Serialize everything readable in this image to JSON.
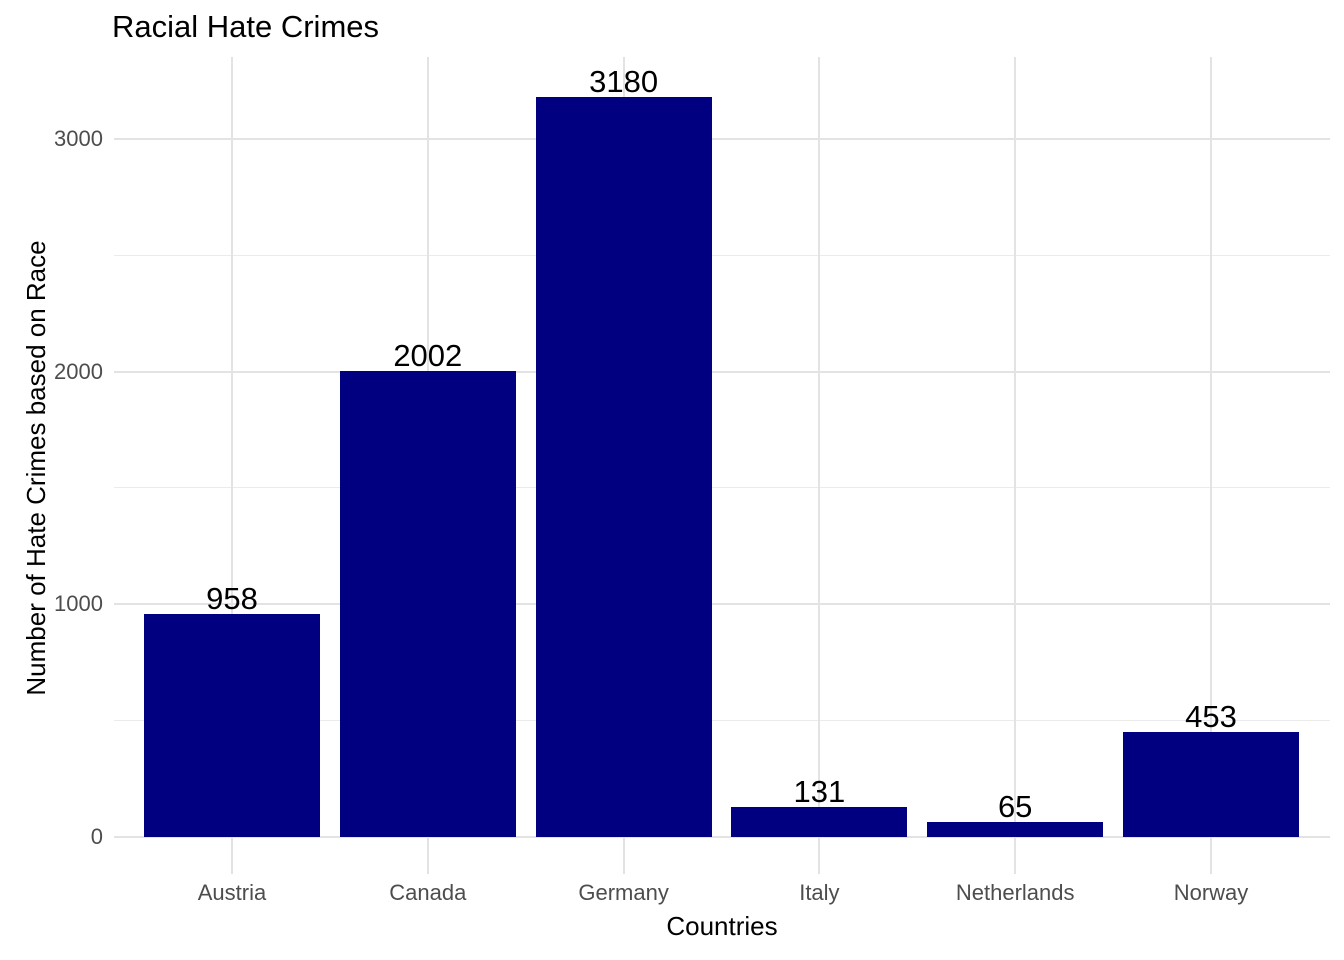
{
  "chart_data": {
    "type": "bar",
    "title": "Racial Hate Crimes",
    "xlabel": "Countries",
    "ylabel": "Number of Hate Crimes based on Race",
    "categories": [
      "Austria",
      "Canada",
      "Germany",
      "Italy",
      "Netherlands",
      "Norway"
    ],
    "values": [
      958,
      2002,
      3180,
      131,
      65,
      453
    ],
    "bar_value_labels": [
      "958",
      "2002",
      "3180",
      "131",
      "65",
      "453"
    ],
    "y_ticks_major": [
      0,
      1000,
      2000,
      3000
    ],
    "y_ticks_minor": [
      500,
      1500,
      2500
    ],
    "ylim": [
      0,
      3350
    ],
    "grid": "major and minor horizontal, major vertical per category",
    "legend_position": "none",
    "colors": {
      "bar_fill": "#000080",
      "grid_major": "#E3E3E3",
      "grid_minor": "#EBEBEB",
      "tick_label": "#4D4D4D",
      "title_text": "#000000",
      "background": "#FFFFFF"
    }
  }
}
